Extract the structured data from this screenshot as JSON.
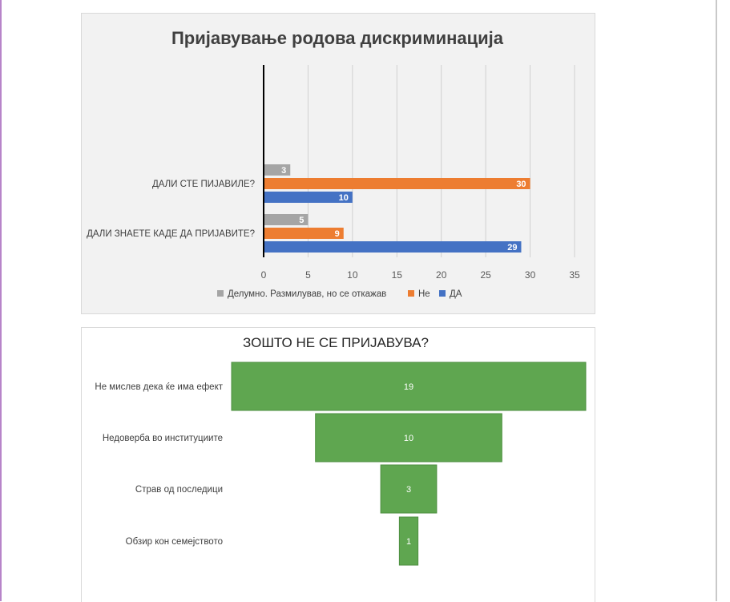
{
  "colors": {
    "da": "#4472c4",
    "ne": "#ed7d31",
    "delumno": "#a5a5a5",
    "funnel": "#5fa650",
    "funnel_border": "#4d8f40"
  },
  "chart_data": [
    {
      "type": "bar",
      "orientation": "horizontal",
      "title": "Пријавување родова дискриминација",
      "categories": [
        "ДАЛИ СТЕ ПИЈАВИЛЕ?",
        "ДАЛИ ЗНАЕТЕ КАДЕ ДА ПРИЈАВИТЕ?"
      ],
      "series": [
        {
          "name": "Делумно. Размилував, но се откажав",
          "color": "#a5a5a5",
          "values": [
            3,
            5
          ]
        },
        {
          "name": "Не",
          "color": "#ed7d31",
          "values": [
            30,
            9
          ]
        },
        {
          "name": "ДА",
          "color": "#4472c4",
          "values": [
            10,
            29
          ]
        }
      ],
      "xlim": [
        0,
        35
      ],
      "xticks": [
        "0",
        "5",
        "10",
        "15",
        "20",
        "25",
        "30",
        "35"
      ],
      "grid": true,
      "legend": "bottom"
    },
    {
      "type": "bar",
      "orientation": "funnel",
      "title": "ЗОШТО НЕ СЕ ПРИЈАВУВА?",
      "categories": [
        "Не мислев дека ќе има ефект",
        "Недоверба во институциите",
        "Страв од последици",
        "Обзир кон семејството"
      ],
      "values": [
        19,
        10,
        3,
        1
      ]
    }
  ]
}
